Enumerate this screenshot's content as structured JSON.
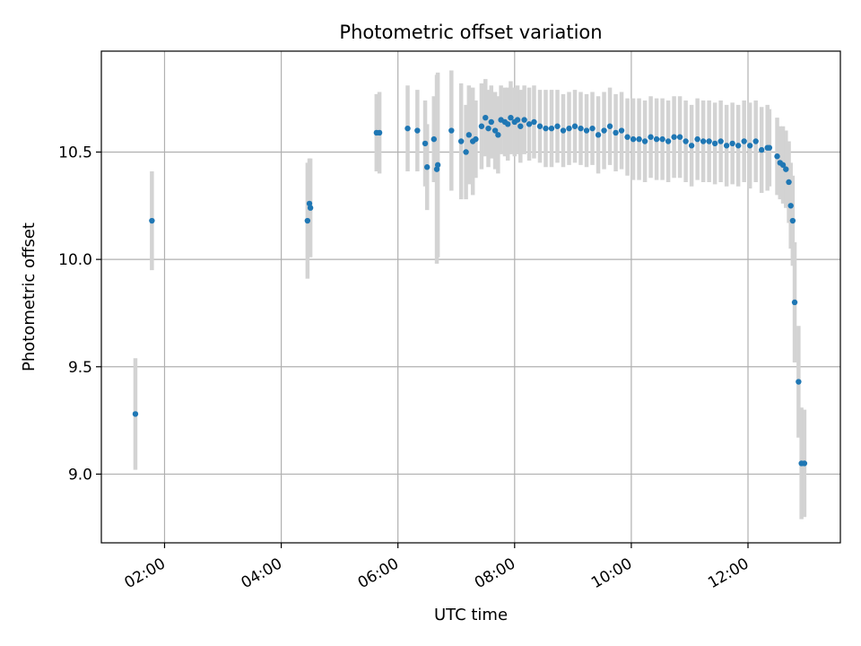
{
  "chart_data": {
    "type": "scatter",
    "title": "Photometric offset variation",
    "xlabel": "UTC time",
    "ylabel": "Photometric offset",
    "x_ticks": [
      "02:00",
      "04:00",
      "06:00",
      "08:00",
      "10:00",
      "12:00"
    ],
    "y_ticks": [
      "9.0",
      "9.5",
      "10.0",
      "10.5"
    ],
    "xlim": [
      "00:55",
      "13:35"
    ],
    "ylim": [
      8.68,
      10.97
    ],
    "grid": true,
    "colors": {
      "point": "#1f77b4",
      "errorbar": "#d3d3d3",
      "grid": "#b0b0b0"
    },
    "series": [
      {
        "x": [
          "01:30",
          "01:47",
          "04:27",
          "04:29",
          "04:30",
          "05:38",
          "05:41",
          "06:10",
          "06:20",
          "06:28",
          "06:30",
          "06:37",
          "06:40",
          "06:41",
          "06:55",
          "07:05",
          "07:10",
          "07:13",
          "07:17",
          "07:20",
          "07:26",
          "07:30",
          "07:33",
          "07:36",
          "07:40",
          "07:43",
          "07:46",
          "07:50",
          "07:53",
          "07:56",
          "08:00",
          "08:03",
          "08:06",
          "08:10",
          "08:15",
          "08:20",
          "08:26",
          "08:32",
          "08:38",
          "08:44",
          "08:50",
          "08:56",
          "09:02",
          "09:08",
          "09:14",
          "09:20",
          "09:26",
          "09:32",
          "09:38",
          "09:44",
          "09:50",
          "09:56",
          "10:02",
          "10:08",
          "10:14",
          "10:20",
          "10:26",
          "10:32",
          "10:38",
          "10:44",
          "10:50",
          "10:56",
          "11:02",
          "11:08",
          "11:14",
          "11:20",
          "11:26",
          "11:32",
          "11:38",
          "11:44",
          "11:50",
          "11:56",
          "12:02",
          "12:08",
          "12:14",
          "12:20",
          "12:22",
          "12:30",
          "12:33",
          "12:36",
          "12:39",
          "12:42",
          "12:44",
          "12:46",
          "12:48",
          "12:52",
          "12:55",
          "12:58"
        ],
        "y": [
          9.28,
          10.18,
          10.18,
          10.26,
          10.24,
          10.59,
          10.59,
          10.61,
          10.6,
          10.54,
          10.43,
          10.56,
          10.42,
          10.44,
          10.6,
          10.55,
          10.5,
          10.58,
          10.55,
          10.56,
          10.62,
          10.66,
          10.61,
          10.64,
          10.6,
          10.58,
          10.65,
          10.64,
          10.63,
          10.66,
          10.64,
          10.65,
          10.62,
          10.65,
          10.63,
          10.64,
          10.62,
          10.61,
          10.61,
          10.62,
          10.6,
          10.61,
          10.62,
          10.61,
          10.6,
          10.61,
          10.58,
          10.6,
          10.62,
          10.59,
          10.6,
          10.57,
          10.56,
          10.56,
          10.55,
          10.57,
          10.56,
          10.56,
          10.55,
          10.57,
          10.57,
          10.55,
          10.53,
          10.56,
          10.55,
          10.55,
          10.54,
          10.55,
          10.53,
          10.54,
          10.53,
          10.55,
          10.53,
          10.55,
          10.51,
          10.52,
          10.52,
          10.48,
          10.45,
          10.44,
          10.42,
          10.36,
          10.25,
          10.18,
          9.8,
          9.43,
          9.05,
          9.05
        ],
        "err": [
          0.26,
          0.23,
          0.27,
          0.21,
          0.23,
          0.18,
          0.19,
          0.2,
          0.19,
          0.2,
          0.2,
          0.2,
          0.44,
          0.43,
          0.28,
          0.27,
          0.22,
          0.23,
          0.25,
          0.18,
          0.2,
          0.18,
          0.18,
          0.17,
          0.18,
          0.18,
          0.16,
          0.16,
          0.17,
          0.17,
          0.16,
          0.16,
          0.17,
          0.16,
          0.17,
          0.17,
          0.17,
          0.18,
          0.18,
          0.17,
          0.17,
          0.17,
          0.17,
          0.17,
          0.17,
          0.17,
          0.18,
          0.18,
          0.18,
          0.18,
          0.18,
          0.18,
          0.19,
          0.19,
          0.19,
          0.19,
          0.19,
          0.19,
          0.19,
          0.19,
          0.19,
          0.19,
          0.19,
          0.19,
          0.19,
          0.19,
          0.19,
          0.19,
          0.19,
          0.19,
          0.19,
          0.19,
          0.2,
          0.19,
          0.2,
          0.2,
          0.18,
          0.18,
          0.17,
          0.18,
          0.18,
          0.19,
          0.2,
          0.21,
          0.28,
          0.26,
          0.26,
          0.25
        ]
      }
    ]
  }
}
